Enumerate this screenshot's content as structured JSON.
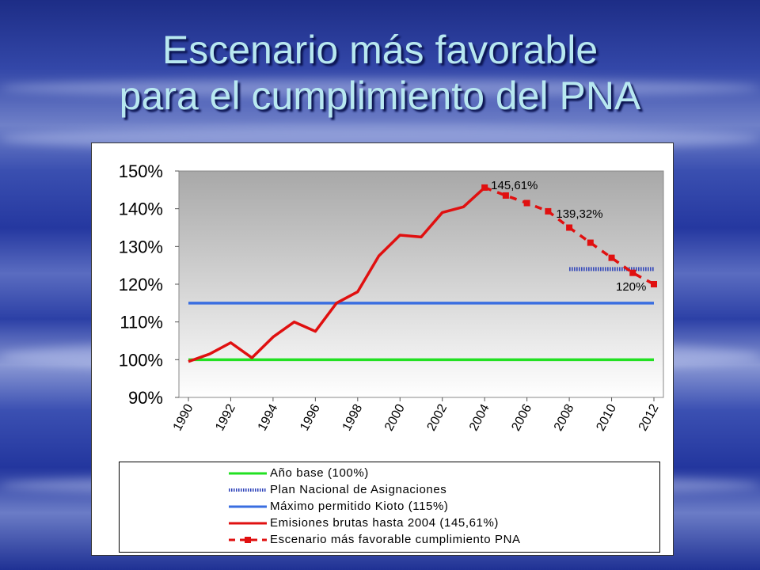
{
  "slide": {
    "title_line1": "Escenario más favorable",
    "title_line2": "para el cumplimiento del PNA"
  },
  "colors": {
    "base": "#22e022",
    "plan": "#2a3fb8",
    "kioto": "#3a6ee0",
    "emisiones": "#e01010",
    "escenario": "#e01010"
  },
  "chart_data": {
    "type": "line",
    "title": "",
    "xlabel": "",
    "ylabel": "",
    "ylim": [
      0.9,
      1.5
    ],
    "xlim": [
      1990,
      2012
    ],
    "x_ticks": [
      "1990",
      "1992",
      "1994",
      "1996",
      "1998",
      "2000",
      "2002",
      "2004",
      "2006",
      "2008",
      "2010",
      "2012"
    ],
    "y_ticks": [
      "90%",
      "100%",
      "110%",
      "120%",
      "130%",
      "140%",
      "150%"
    ],
    "grid": false,
    "series": [
      {
        "name": "Año base (100%)",
        "style": "solid",
        "color": "#22e022",
        "x": [
          1990,
          2012
        ],
        "y": [
          1.0,
          1.0
        ]
      },
      {
        "name": "Plan Nacional de Asignaciones",
        "style": "hatched",
        "color": "#2a3fb8",
        "x": [
          2008,
          2012
        ],
        "y": [
          1.24,
          1.24
        ]
      },
      {
        "name": "Máximo permitido Kioto (115%)",
        "style": "solid",
        "color": "#3a6ee0",
        "x": [
          1990,
          2012
        ],
        "y": [
          1.15,
          1.15
        ]
      },
      {
        "name": "Emisiones brutas hasta 2004 (145,61%)",
        "style": "solid",
        "color": "#e01010",
        "x": [
          1990,
          1991,
          1992,
          1993,
          1994,
          1995,
          1996,
          1997,
          1998,
          1999,
          2000,
          2001,
          2002,
          2003,
          2004
        ],
        "y": [
          0.995,
          1.015,
          1.045,
          1.005,
          1.06,
          1.1,
          1.075,
          1.15,
          1.18,
          1.275,
          1.33,
          1.325,
          1.39,
          1.405,
          1.4561
        ]
      },
      {
        "name": "Escenario más favorable cumplimiento PNA",
        "style": "dashed-square",
        "color": "#e01010",
        "x": [
          2004,
          2005,
          2006,
          2007,
          2008,
          2009,
          2010,
          2011,
          2012
        ],
        "y": [
          1.4561,
          1.435,
          1.415,
          1.3932,
          1.35,
          1.31,
          1.27,
          1.23,
          1.2
        ]
      }
    ],
    "annotations": [
      {
        "text": "145,61%",
        "x": 2004,
        "y": 1.4561
      },
      {
        "text": "139,32%",
        "x": 2007,
        "y": 1.3932
      },
      {
        "text": "120%",
        "x": 2012,
        "y": 1.2
      }
    ],
    "legend_position": "bottom"
  }
}
